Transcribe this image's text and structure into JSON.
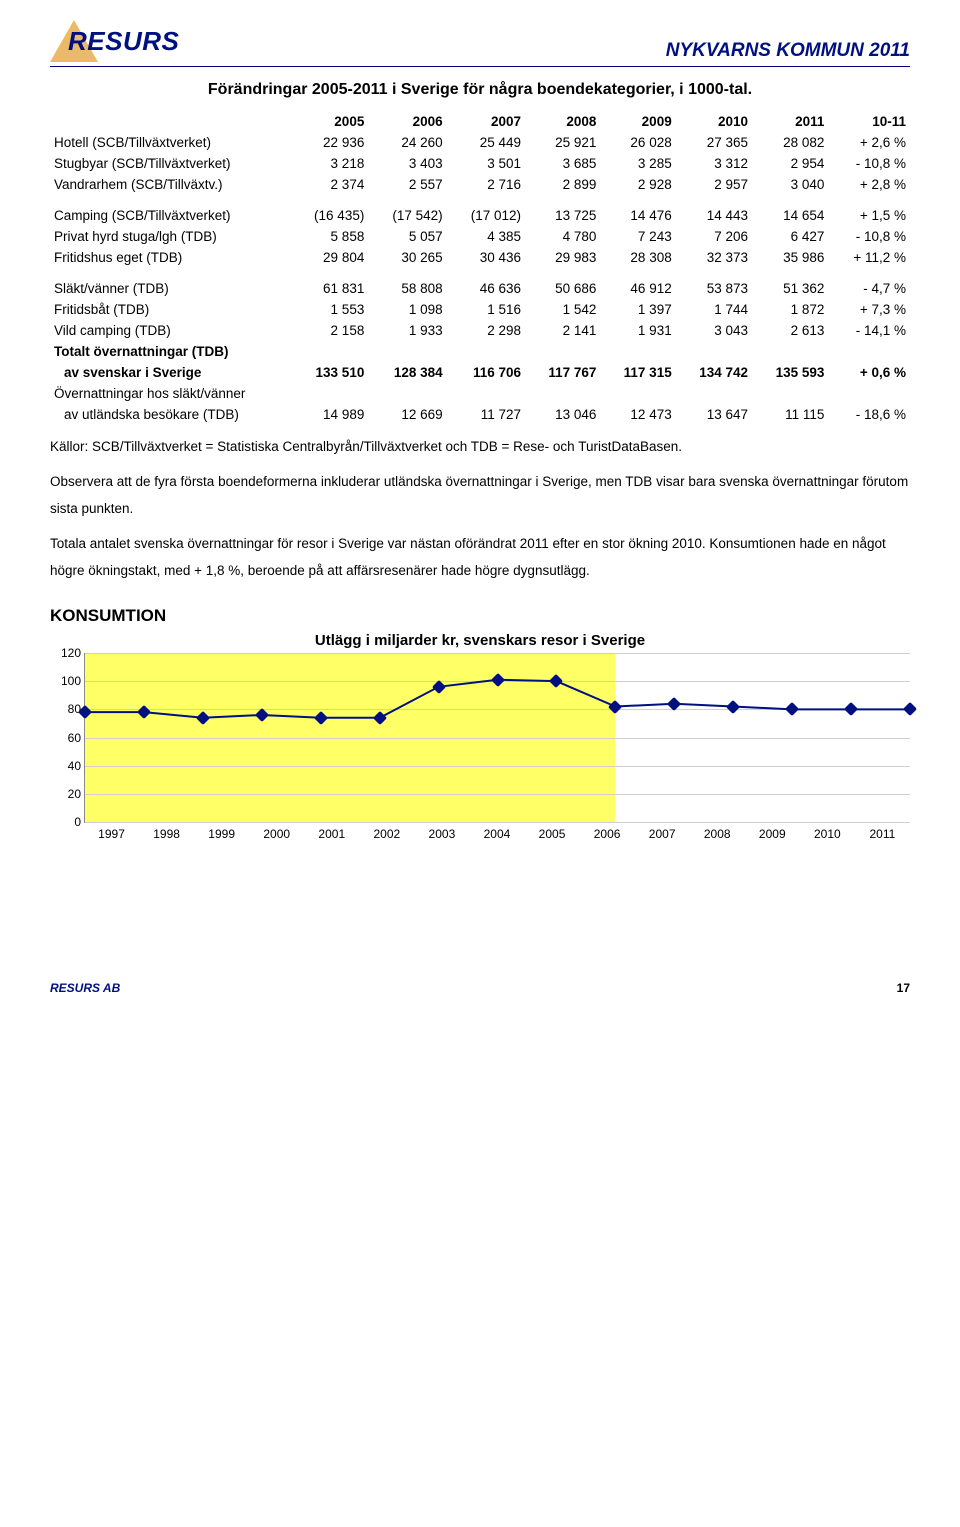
{
  "header": {
    "logo_text": "RESURS",
    "doc_title": "NYKVARNS KOMMUN 2011"
  },
  "section_title": "Förändringar 2005-2011 i Sverige för några boendekategorier, i 1000-tal.",
  "table": {
    "columns": [
      "",
      "2005",
      "2006",
      "2007",
      "2008",
      "2009",
      "2010",
      "2011",
      "10-11"
    ],
    "rows": [
      {
        "label": "Hotell (SCB/Tillväxtverket)",
        "v": [
          "22 936",
          "24 260",
          "25 449",
          "25 921",
          "26 028",
          "27 365",
          "28 082",
          "+ 2,6 %"
        ]
      },
      {
        "label": "Stugbyar (SCB/Tillväxtverket)",
        "v": [
          "3 218",
          "3 403",
          "3 501",
          "3 685",
          "3 285",
          "3 312",
          "2 954",
          "- 10,8 %"
        ]
      },
      {
        "label": "Vandrarhem (SCB/Tillväxtv.)",
        "v": [
          "2 374",
          "2 557",
          "2 716",
          "2 899",
          "2 928",
          "2 957",
          "3 040",
          "+ 2,8 %"
        ]
      }
    ],
    "rows2": [
      {
        "label": "Camping (SCB/Tillväxtverket)",
        "v": [
          "(16 435)",
          "(17 542)",
          "(17 012)",
          "13 725",
          "14 476",
          "14 443",
          "14 654",
          "+ 1,5 %"
        ]
      },
      {
        "label": "Privat hyrd stuga/lgh (TDB)",
        "v": [
          "5 858",
          "5 057",
          "4 385",
          "4 780",
          "7 243",
          "7 206",
          "6 427",
          "- 10,8 %"
        ]
      },
      {
        "label": "Fritidshus eget (TDB)",
        "v": [
          "29 804",
          "30 265",
          "30 436",
          "29 983",
          "28 308",
          "32 373",
          "35 986",
          "+ 11,2 %"
        ]
      }
    ],
    "rows3": [
      {
        "label": "Släkt/vänner (TDB)",
        "v": [
          "61 831",
          "58 808",
          "46 636",
          "50 686",
          "46 912",
          "53 873",
          "51 362",
          "- 4,7 %"
        ]
      },
      {
        "label": "Fritidsbåt (TDB)",
        "v": [
          "1 553",
          "1 098",
          "1 516",
          "1 542",
          "1 397",
          "1 744",
          "1 872",
          "+ 7,3 %"
        ]
      },
      {
        "label": "Vild camping (TDB)",
        "v": [
          "2 158",
          "1 933",
          "2 298",
          "2 141",
          "1 931",
          "3 043",
          "2 613",
          "- 14,1 %"
        ]
      }
    ],
    "total_label": "Totalt övernattningar (TDB)",
    "total_sub_label": "av svenskar i Sverige",
    "total_sub_v": [
      "133 510",
      "128 384",
      "116 706",
      "117 767",
      "117 315",
      "134 742",
      "135 593",
      "+ 0,6 %"
    ],
    "foreign_label": "Övernattningar hos släkt/vänner",
    "foreign_sub_label": "av utländska besökare (TDB)",
    "foreign_sub_v": [
      "14 989",
      "12 669",
      "11 727",
      "13 046",
      "12 473",
      "13 647",
      "11 115",
      "- 18,6 %"
    ]
  },
  "paragraphs": [
    "Källor: SCB/Tillväxtverket = Statistiska Centralbyrån/Tillväxtverket och TDB = Rese- och TuristDataBasen.",
    "Observera att de fyra första boendeformerna inkluderar utländska övernattningar i Sverige, men TDB visar bara svenska övernattningar förutom sista punkten.",
    "Totala antalet svenska övernattningar för resor i Sverige var nästan oförändrat 2011 efter en stor ökning 2010. Konsumtionen hade en något högre ökningstakt, med + 1,8 %, beroende på att affärsresenärer hade högre dygnsutlägg."
  ],
  "konsumtion_label": "KONSUMTION",
  "chart": {
    "type": "line",
    "title": "Utlägg i miljarder kr, svenskars resor i Sverige",
    "x_labels": [
      "1997",
      "1998",
      "1999",
      "2000",
      "2001",
      "2002",
      "2003",
      "2004",
      "2005",
      "2006",
      "2007",
      "2008",
      "2009",
      "2010",
      "2011"
    ],
    "y_ticks": [
      0,
      20,
      40,
      60,
      80,
      100,
      120
    ],
    "ylim": [
      0,
      120
    ],
    "values": [
      78,
      78,
      74,
      76,
      74,
      74,
      96,
      101,
      100,
      82,
      84,
      82,
      80,
      80,
      80
    ],
    "line_color": "#001080",
    "marker_color": "#001080",
    "marker_size": 5,
    "line_width": 2,
    "band1": {
      "start_idx": 0,
      "end_idx": 7,
      "color": "#ffff66"
    },
    "band2": {
      "start_idx": 7,
      "end_idx": 9,
      "color": "#ffff66"
    },
    "grid_color": "#d0d0d0",
    "background": "#ffffff"
  },
  "footer": {
    "left": "RESURS AB",
    "page": "17"
  }
}
